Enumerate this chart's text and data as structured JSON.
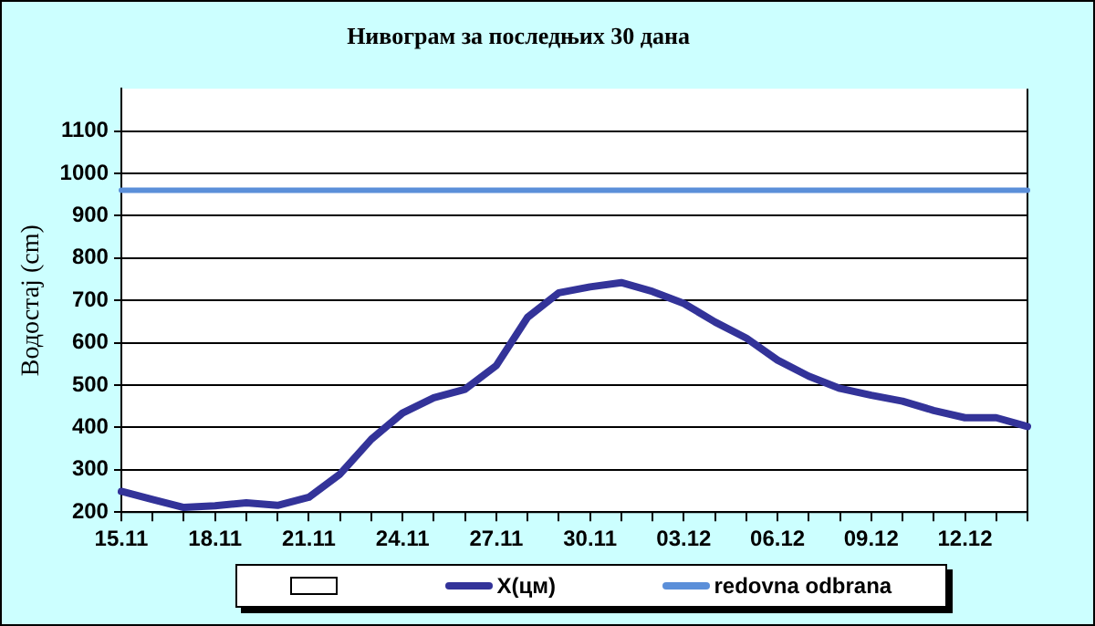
{
  "chart_data": {
    "type": "line",
    "title": "Нивограм за последњих 30 дана",
    "ylabel": "Водостај (cm)",
    "categories": [
      "15.11",
      null,
      null,
      "18.11",
      null,
      null,
      "21.11",
      null,
      null,
      "24.11",
      null,
      null,
      "27.11",
      null,
      null,
      "30.11",
      null,
      null,
      "03.12",
      null,
      null,
      "06.12",
      null,
      null,
      "09.12",
      null,
      null,
      "12.12",
      null,
      null
    ],
    "series": [
      {
        "name": "X(цм)",
        "color": "#333399",
        "values": [
          249,
          230,
          211,
          215,
          222,
          216,
          235,
          290,
          372,
          434,
          470,
          490,
          546,
          660,
          718,
          732,
          742,
          721,
          693,
          649,
          611,
          559,
          521,
          492,
          476,
          462,
          440,
          423,
          423,
          402
        ]
      },
      {
        "name": "redovna odbrana",
        "color": "#5b8fd9",
        "values": [
          960,
          960,
          960,
          960,
          960,
          960,
          960,
          960,
          960,
          960,
          960,
          960,
          960,
          960,
          960,
          960,
          960,
          960,
          960,
          960,
          960,
          960,
          960,
          960,
          960,
          960,
          960,
          960,
          960,
          960
        ]
      }
    ],
    "ylim": [
      200,
      1200
    ],
    "yticks": [
      200,
      300,
      400,
      500,
      600,
      700,
      800,
      900,
      1000,
      1100
    ],
    "grid": "y",
    "legend": "bottom",
    "marker": "none",
    "line_style": "solid"
  }
}
